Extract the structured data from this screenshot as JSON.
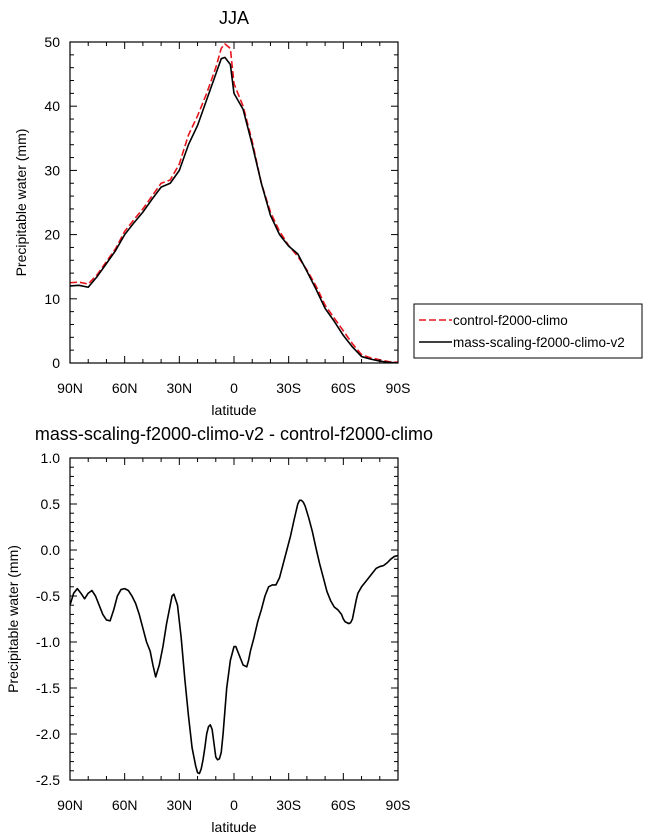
{
  "chart_data": [
    {
      "type": "line",
      "title": "JJA",
      "xlabel": "latitude",
      "ylabel": "Precipitable water (mm)",
      "xlim": [
        90,
        -90
      ],
      "ylim": [
        0,
        50
      ],
      "xticks": [
        90,
        60,
        30,
        0,
        -30,
        -60,
        -90
      ],
      "xticklabels": [
        "90N",
        "60N",
        "30N",
        "0",
        "30S",
        "60S",
        "90S"
      ],
      "yticks": [
        0,
        10,
        20,
        30,
        40,
        50
      ],
      "yticklabels": [
        "0",
        "10",
        "20",
        "30",
        "40",
        "50"
      ],
      "legend": "right",
      "series": [
        {
          "name": "control-f2000-climo",
          "color": "#e8141c",
          "dash": "dashed",
          "x": [
            90,
            85,
            80,
            75,
            70,
            65,
            60,
            55,
            50,
            45,
            40,
            35,
            30,
            25,
            20,
            15,
            10,
            7,
            5,
            2,
            0,
            -5,
            -10,
            -15,
            -20,
            -25,
            -30,
            -35,
            -40,
            -45,
            -50,
            -55,
            -60,
            -65,
            -70,
            -75,
            -80,
            -85,
            -90
          ],
          "y": [
            12.5,
            12.6,
            12.3,
            13.8,
            15.8,
            17.8,
            20.5,
            22.3,
            24.0,
            26.0,
            28.0,
            28.5,
            31.0,
            35.5,
            38.5,
            42.0,
            46.0,
            49.0,
            49.7,
            49.0,
            43.5,
            40.0,
            34.5,
            28.0,
            23.5,
            20.5,
            18.3,
            16.6,
            14.5,
            12.0,
            9.0,
            7.0,
            5.0,
            3.0,
            1.3,
            0.8,
            0.5,
            0.2,
            0.1
          ]
        },
        {
          "name": "mass-scaling-f2000-climo-v2",
          "color": "#000000",
          "dash": "solid",
          "x": [
            90,
            85,
            80,
            75,
            70,
            65,
            60,
            55,
            50,
            45,
            40,
            35,
            30,
            25,
            20,
            15,
            10,
            7,
            5,
            2,
            0,
            -5,
            -10,
            -15,
            -20,
            -25,
            -30,
            -35,
            -40,
            -45,
            -50,
            -55,
            -60,
            -65,
            -70,
            -75,
            -80,
            -85,
            -90
          ],
          "y": [
            12.0,
            12.1,
            11.8,
            13.5,
            15.5,
            17.5,
            20.0,
            21.8,
            23.5,
            25.5,
            27.4,
            28.0,
            30.0,
            34.0,
            37.0,
            41.0,
            45.0,
            47.4,
            47.6,
            46.5,
            42.0,
            39.5,
            34.0,
            28.0,
            23.0,
            20.0,
            18.2,
            17.0,
            14.3,
            11.5,
            8.5,
            6.5,
            4.3,
            2.5,
            1.0,
            0.6,
            0.3,
            0.1,
            0.0
          ]
        }
      ]
    },
    {
      "type": "line",
      "title": "mass-scaling-f2000-climo-v2 - control-f2000-climo",
      "xlabel": "latitude",
      "ylabel": "Precipitable water (mm)",
      "xlim": [
        90,
        -90
      ],
      "ylim": [
        -2.5,
        1.0
      ],
      "xticks": [
        90,
        60,
        30,
        0,
        -30,
        -60,
        -90
      ],
      "xticklabels": [
        "90N",
        "60N",
        "30N",
        "0",
        "30S",
        "60S",
        "90S"
      ],
      "yticks": [
        -2.5,
        -2.0,
        -1.5,
        -1.0,
        -0.5,
        0.0,
        0.5,
        1.0
      ],
      "yticklabels": [
        "-2.5",
        "-2.0",
        "-1.5",
        "-1.0",
        "-0.5",
        "0.0",
        "0.5",
        "1.0"
      ],
      "series": [
        {
          "color": "#000000",
          "dash": "solid",
          "x": [
            90,
            88,
            86,
            84,
            82,
            80,
            78,
            76,
            74,
            72,
            70,
            68,
            66,
            64,
            62,
            60,
            58,
            56,
            54,
            52,
            50,
            48,
            46,
            44.5,
            43,
            41,
            39,
            37,
            35,
            34,
            33,
            31,
            29,
            27,
            25,
            23,
            21,
            20,
            19,
            18,
            17,
            16,
            15,
            14,
            13,
            12,
            11,
            10,
            9,
            8,
            7,
            6,
            5,
            4,
            2,
            0,
            -1,
            -2,
            -3,
            -5,
            -7,
            -8,
            -9,
            -11,
            -13,
            -15,
            -17,
            -19,
            -21,
            -23,
            -25,
            -27,
            -29,
            -31,
            -33,
            -35,
            -36,
            -37,
            -38,
            -39,
            -41,
            -43,
            -45,
            -47,
            -49,
            -51,
            -53,
            -55,
            -57,
            -59,
            -60,
            -61,
            -63,
            -64,
            -65,
            -66,
            -67,
            -68,
            -70,
            -72,
            -74,
            -76,
            -78,
            -80,
            -82,
            -84,
            -86,
            -88,
            -90
          ],
          "y": [
            -0.6,
            -0.47,
            -0.42,
            -0.47,
            -0.53,
            -0.47,
            -0.44,
            -0.5,
            -0.6,
            -0.7,
            -0.76,
            -0.77,
            -0.65,
            -0.5,
            -0.43,
            -0.42,
            -0.44,
            -0.5,
            -0.58,
            -0.7,
            -0.85,
            -1.0,
            -1.1,
            -1.25,
            -1.38,
            -1.25,
            -1.05,
            -0.8,
            -0.6,
            -0.5,
            -0.48,
            -0.6,
            -0.95,
            -1.4,
            -1.8,
            -2.15,
            -2.35,
            -2.42,
            -2.43,
            -2.38,
            -2.28,
            -2.15,
            -2.0,
            -1.92,
            -1.9,
            -1.95,
            -2.1,
            -2.25,
            -2.28,
            -2.27,
            -2.2,
            -2.0,
            -1.75,
            -1.5,
            -1.2,
            -1.05,
            -1.05,
            -1.1,
            -1.15,
            -1.25,
            -1.27,
            -1.2,
            -1.1,
            -0.95,
            -0.78,
            -0.65,
            -0.5,
            -0.4,
            -0.38,
            -0.38,
            -0.3,
            -0.15,
            0.0,
            0.15,
            0.33,
            0.5,
            0.54,
            0.54,
            0.52,
            0.48,
            0.35,
            0.2,
            0.02,
            -0.15,
            -0.3,
            -0.45,
            -0.55,
            -0.62,
            -0.65,
            -0.7,
            -0.75,
            -0.78,
            -0.8,
            -0.79,
            -0.75,
            -0.65,
            -0.55,
            -0.47,
            -0.4,
            -0.35,
            -0.3,
            -0.25,
            -0.2,
            -0.18,
            -0.17,
            -0.14,
            -0.1,
            -0.07,
            -0.06
          ]
        }
      ]
    }
  ]
}
